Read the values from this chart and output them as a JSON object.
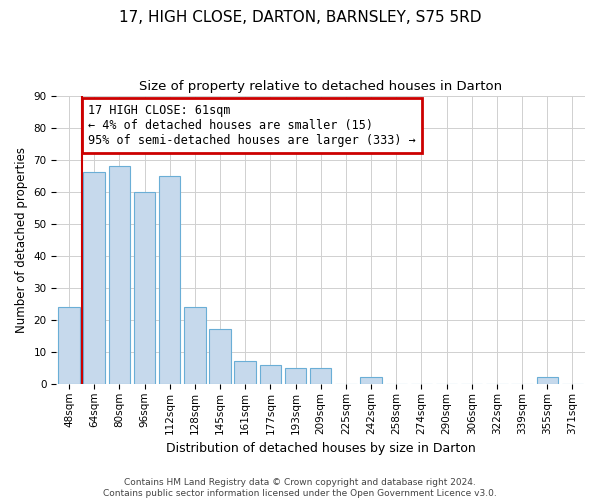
{
  "title": "17, HIGH CLOSE, DARTON, BARNSLEY, S75 5RD",
  "subtitle": "Size of property relative to detached houses in Darton",
  "xlabel": "Distribution of detached houses by size in Darton",
  "ylabel": "Number of detached properties",
  "categories": [
    "48sqm",
    "64sqm",
    "80sqm",
    "96sqm",
    "112sqm",
    "128sqm",
    "145sqm",
    "161sqm",
    "177sqm",
    "193sqm",
    "209sqm",
    "225sqm",
    "242sqm",
    "258sqm",
    "274sqm",
    "290sqm",
    "306sqm",
    "322sqm",
    "339sqm",
    "355sqm",
    "371sqm"
  ],
  "values": [
    24,
    66,
    68,
    60,
    65,
    24,
    17,
    7,
    6,
    5,
    5,
    0,
    2,
    0,
    0,
    0,
    0,
    0,
    0,
    2,
    0
  ],
  "bar_color": "#c6d9ec",
  "bar_edge_color": "#6aaed6",
  "highlight_line_color": "#cc0000",
  "ylim": [
    0,
    90
  ],
  "yticks": [
    0,
    10,
    20,
    30,
    40,
    50,
    60,
    70,
    80,
    90
  ],
  "annotation_text": "17 HIGH CLOSE: 61sqm\n← 4% of detached houses are smaller (15)\n95% of semi-detached houses are larger (333) →",
  "annotation_box_color": "#ffffff",
  "annotation_box_edge_color": "#cc0000",
  "footer_line1": "Contains HM Land Registry data © Crown copyright and database right 2024.",
  "footer_line2": "Contains public sector information licensed under the Open Government Licence v3.0.",
  "background_color": "#ffffff",
  "grid_color": "#d0d0d0",
  "title_fontsize": 11,
  "subtitle_fontsize": 9.5,
  "xlabel_fontsize": 9,
  "ylabel_fontsize": 8.5,
  "tick_fontsize": 7.5,
  "annotation_fontsize": 8.5,
  "footer_fontsize": 6.5
}
